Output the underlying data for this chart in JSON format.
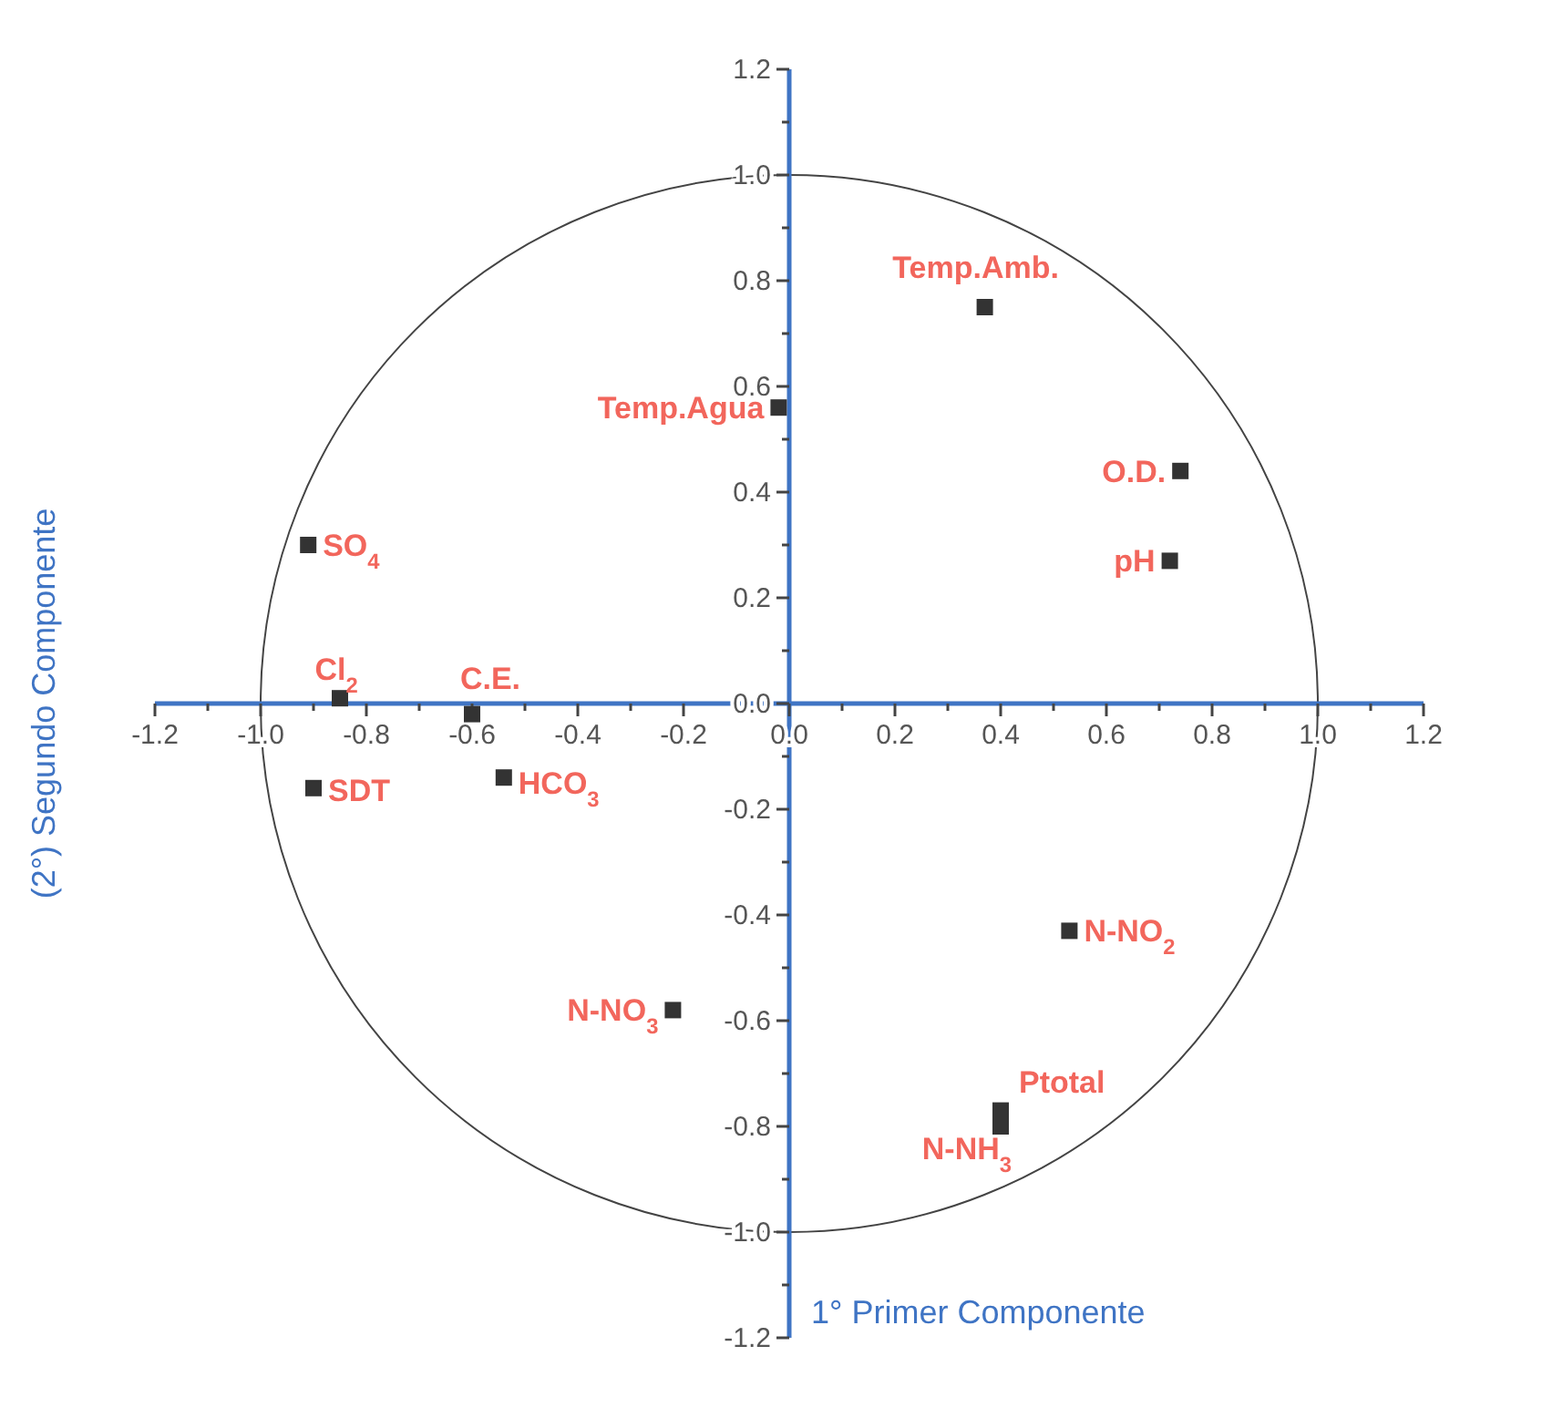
{
  "chart_data": {
    "type": "scatter",
    "xlabel": "1° Primer Componente",
    "ylabel": "(2°) Segundo Componente",
    "xlim": [
      -1.2,
      1.2
    ],
    "ylim": [
      -1.2,
      1.2
    ],
    "xticks": [
      -1.2,
      {
        "value": -1.1,
        "label": null
      },
      {
        "value": -1.0,
        "label": "-1.0"
      },
      {
        "value": -0.9,
        "label": null
      },
      -0.8,
      {
        "value": -0.7,
        "label": null
      },
      -0.6,
      {
        "value": -0.5,
        "label": null
      },
      -0.4,
      {
        "value": -0.3,
        "label": null
      },
      -0.2,
      {
        "value": -0.1,
        "label": null
      },
      {
        "value": 0,
        "label": "0.0"
      },
      {
        "value": 0.1,
        "label": null
      },
      0.2,
      {
        "value": 0.3,
        "label": null
      },
      0.4,
      {
        "value": 0.5,
        "label": null
      },
      0.6,
      {
        "value": 0.7,
        "label": null
      },
      0.8,
      {
        "value": 0.9,
        "label": null
      },
      {
        "value": 1.0,
        "label": "1.0"
      },
      {
        "value": 1.1,
        "label": null
      },
      1.2
    ],
    "yticks": [
      -1.2,
      {
        "value": -1.1,
        "label": null
      },
      {
        "value": -1.0,
        "label": "-1.0"
      },
      {
        "value": -0.9,
        "label": null
      },
      -0.8,
      {
        "value": -0.7,
        "label": null
      },
      -0.6,
      {
        "value": -0.5,
        "label": null
      },
      -0.4,
      {
        "value": -0.3,
        "label": null
      },
      -0.2,
      {
        "value": -0.1,
        "label": null
      },
      {
        "value": 0,
        "label": "0.0"
      },
      {
        "value": 0.1,
        "label": null
      },
      0.2,
      {
        "value": 0.3,
        "label": null
      },
      0.4,
      {
        "value": 0.5,
        "label": null
      },
      0.6,
      {
        "value": 0.7,
        "label": null
      },
      0.8,
      {
        "value": 0.9,
        "label": null
      },
      {
        "value": 1.0,
        "label": "1.0"
      },
      {
        "value": 1.1,
        "label": null
      },
      1.2
    ],
    "grid": false,
    "marker": "square",
    "series": [
      {
        "color": "#333333",
        "x": [
          0.37,
          -0.02,
          0.74,
          0.72,
          -0.91,
          -0.85,
          -0.6,
          -0.9,
          -0.54,
          -0.22,
          0.53,
          0.4,
          0.4
        ],
        "values": [
          0.75,
          0.56,
          0.44,
          0.27,
          0.3,
          0.01,
          -0.02,
          -0.16,
          -0.14,
          -0.58,
          -0.43,
          -0.77,
          -0.8
        ]
      }
    ],
    "annotations": [
      {
        "text": "Temp.Amb.",
        "x": 0.37,
        "y": 0.75
      },
      {
        "text": "Temp.Agua",
        "x": -0.02,
        "y": 0.56
      },
      {
        "text": "O.D.",
        "x": 0.74,
        "y": 0.44
      },
      {
        "text": "pH",
        "x": 0.72,
        "y": 0.27
      },
      {
        "text": "SO$_{4}$",
        "x": -0.91,
        "y": 0.3
      },
      {
        "text": "Cl$_{2}$",
        "x": -0.85,
        "y": 0.01
      },
      {
        "text": "C.E.",
        "x": -0.6,
        "y": -0.02
      },
      {
        "text": "SDT",
        "x": -0.9,
        "y": -0.16
      },
      {
        "text": "HCO$_{3}$",
        "x": -0.54,
        "y": -0.14
      },
      {
        "text": "N-NO$_{3}$",
        "x": -0.22,
        "y": -0.58
      },
      {
        "text": "N-NO$_{2}$",
        "x": 0.53,
        "y": -0.43
      },
      {
        "text": "Ptotal",
        "x": 0.4,
        "y": -0.77
      },
      {
        "text": "N-NH$_{3}$",
        "x": 0.4,
        "y": -0.8
      }
    ]
  }
}
